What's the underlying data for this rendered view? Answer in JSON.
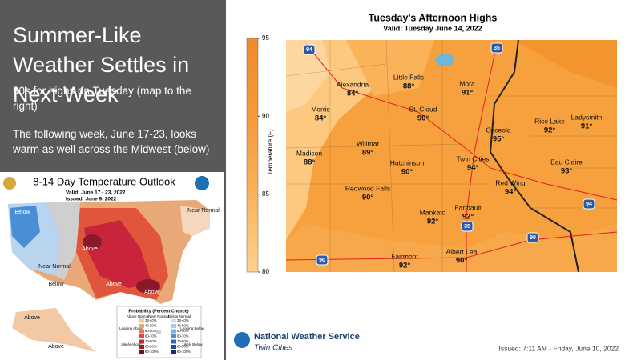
{
  "slide": {
    "title": "Summer-Like Weather Settles in Next Week",
    "bullets": [
      "90s for highs on Tuesday (map to the right)",
      "The following week, June 17-23, looks warm as well across the Midwest (below)"
    ]
  },
  "outlook_map": {
    "title": "8-14 Day Temperature Outlook",
    "valid": "Valid:  June 17 - 23, 2022",
    "issued": "Issued:  June 9, 2022",
    "region_labels": [
      "Below",
      "Near Normal",
      "Above",
      "Below",
      "Above",
      "Above",
      "Near Normal",
      "Above",
      "Above"
    ],
    "legend": {
      "title": "Probability (Percent Chance)",
      "headers": [
        "Above Normal",
        "Near Normal",
        "Below Normal"
      ],
      "side_labels": [
        "Leaning Above",
        "Likely Above",
        "Leaning Below",
        "Likely Below"
      ],
      "classes": [
        "33-40%",
        "40-50%",
        "50-60%",
        "60-70%",
        "70-80%",
        "80-90%",
        "90-100%"
      ]
    }
  },
  "highs_map": {
    "title": "Tuesday's Afternoon Highs",
    "valid": "Valid: Tuesday June 14, 2022",
    "colorbar": {
      "label": "Temperature (F)",
      "range": [
        80,
        95
      ],
      "ticks": [
        80,
        85,
        90,
        95
      ]
    },
    "cities": [
      {
        "name": "Alexandria",
        "temp": "84°"
      },
      {
        "name": "Little Falls",
        "temp": "88°"
      },
      {
        "name": "Mora",
        "temp": "91°"
      },
      {
        "name": "Morris",
        "temp": "84°"
      },
      {
        "name": "St. Cloud",
        "temp": "90°"
      },
      {
        "name": "Osceola",
        "temp": "95°"
      },
      {
        "name": "Rice Lake",
        "temp": "92°"
      },
      {
        "name": "Ladysmith",
        "temp": "91°"
      },
      {
        "name": "Madison",
        "temp": "88°"
      },
      {
        "name": "Willmar",
        "temp": "89°"
      },
      {
        "name": "Hutchinson",
        "temp": "90°"
      },
      {
        "name": "Twin Cities",
        "temp": "94°"
      },
      {
        "name": "Eau Claire",
        "temp": "93°"
      },
      {
        "name": "Redwood Falls",
        "temp": "90°"
      },
      {
        "name": "Red Wing",
        "temp": "94°"
      },
      {
        "name": "Faribault",
        "temp": "92°"
      },
      {
        "name": "Mankato",
        "temp": "92°"
      },
      {
        "name": "Fairmont",
        "temp": "92°"
      },
      {
        "name": "Albert Lea",
        "temp": "90°"
      }
    ],
    "highways": [
      "94",
      "35",
      "94",
      "90",
      "90",
      "35"
    ]
  },
  "footer": {
    "agency": "National Weather Service",
    "office": "Twin Cities",
    "issued": "Issued: 7:11 AM - Friday, June 10, 2022"
  }
}
